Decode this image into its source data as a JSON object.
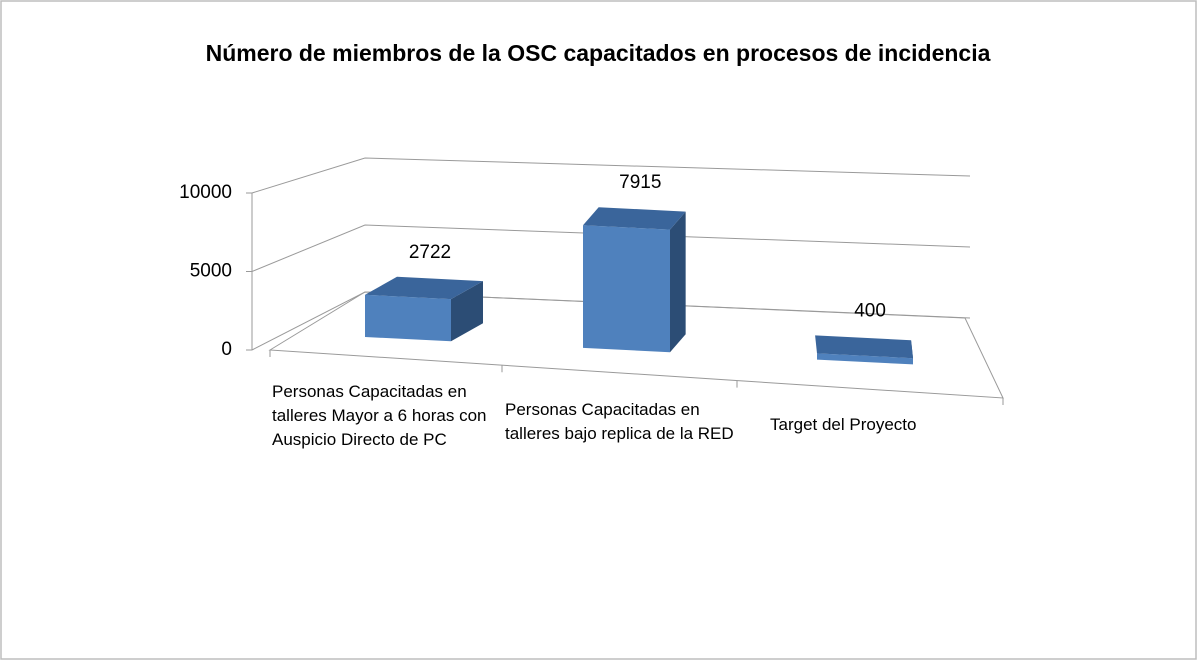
{
  "chart_data": {
    "type": "bar3d",
    "title": "Número de miembros de la OSC capacitados en procesos de incidencia",
    "categories": [
      "Personas Capacitadas en talleres Mayor a 6 horas con Auspicio Directo de PC",
      "Personas Capacitadas en talleres bajo replica de la RED",
      "Target del Proyecto"
    ],
    "values": [
      2722,
      7915,
      400
    ],
    "color": "#4f81bd",
    "ylim": [
      0,
      10000
    ],
    "yticks": [
      0,
      5000,
      10000
    ],
    "grid": true
  }
}
